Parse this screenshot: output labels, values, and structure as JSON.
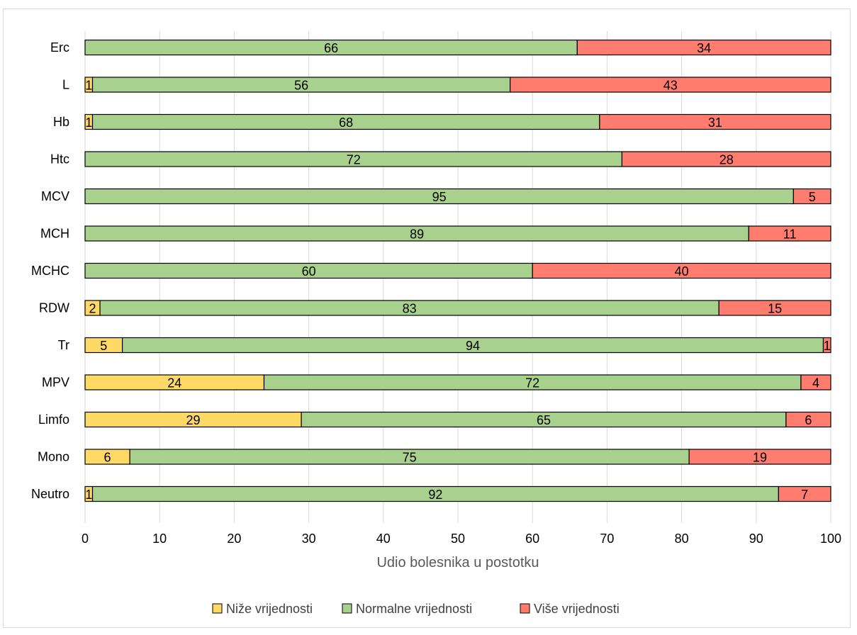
{
  "chart_data": {
    "type": "bar",
    "orientation": "horizontal",
    "stacked": true,
    "categories": [
      "Erc",
      "L",
      "Hb",
      "Htc",
      "MCV",
      "MCH",
      "MCHC",
      "RDW",
      "Tr",
      "MPV",
      "Limfo",
      "Mono",
      "Neutro"
    ],
    "series": [
      {
        "name": "Niže vrijednosti",
        "color": "#ffd966",
        "values": [
          0,
          1,
          1,
          0,
          0,
          0,
          0,
          2,
          5,
          24,
          29,
          6,
          1
        ]
      },
      {
        "name": "Normalne vrijednosti",
        "color": "#a9d18e",
        "values": [
          66,
          56,
          68,
          72,
          95,
          89,
          60,
          83,
          94,
          72,
          65,
          75,
          92
        ]
      },
      {
        "name": "Više vrijednosti",
        "color": "#ff7c6e",
        "values": [
          34,
          43,
          31,
          28,
          5,
          11,
          40,
          15,
          1,
          4,
          6,
          19,
          7
        ]
      }
    ],
    "xlabel": "Udio bolesnika u postotku",
    "xlim": [
      0,
      100
    ],
    "xticks": [
      "0",
      "10",
      "20",
      "30",
      "40",
      "50",
      "60",
      "70",
      "80",
      "90",
      "100"
    ],
    "grid": true,
    "legend_position": "bottom"
  }
}
